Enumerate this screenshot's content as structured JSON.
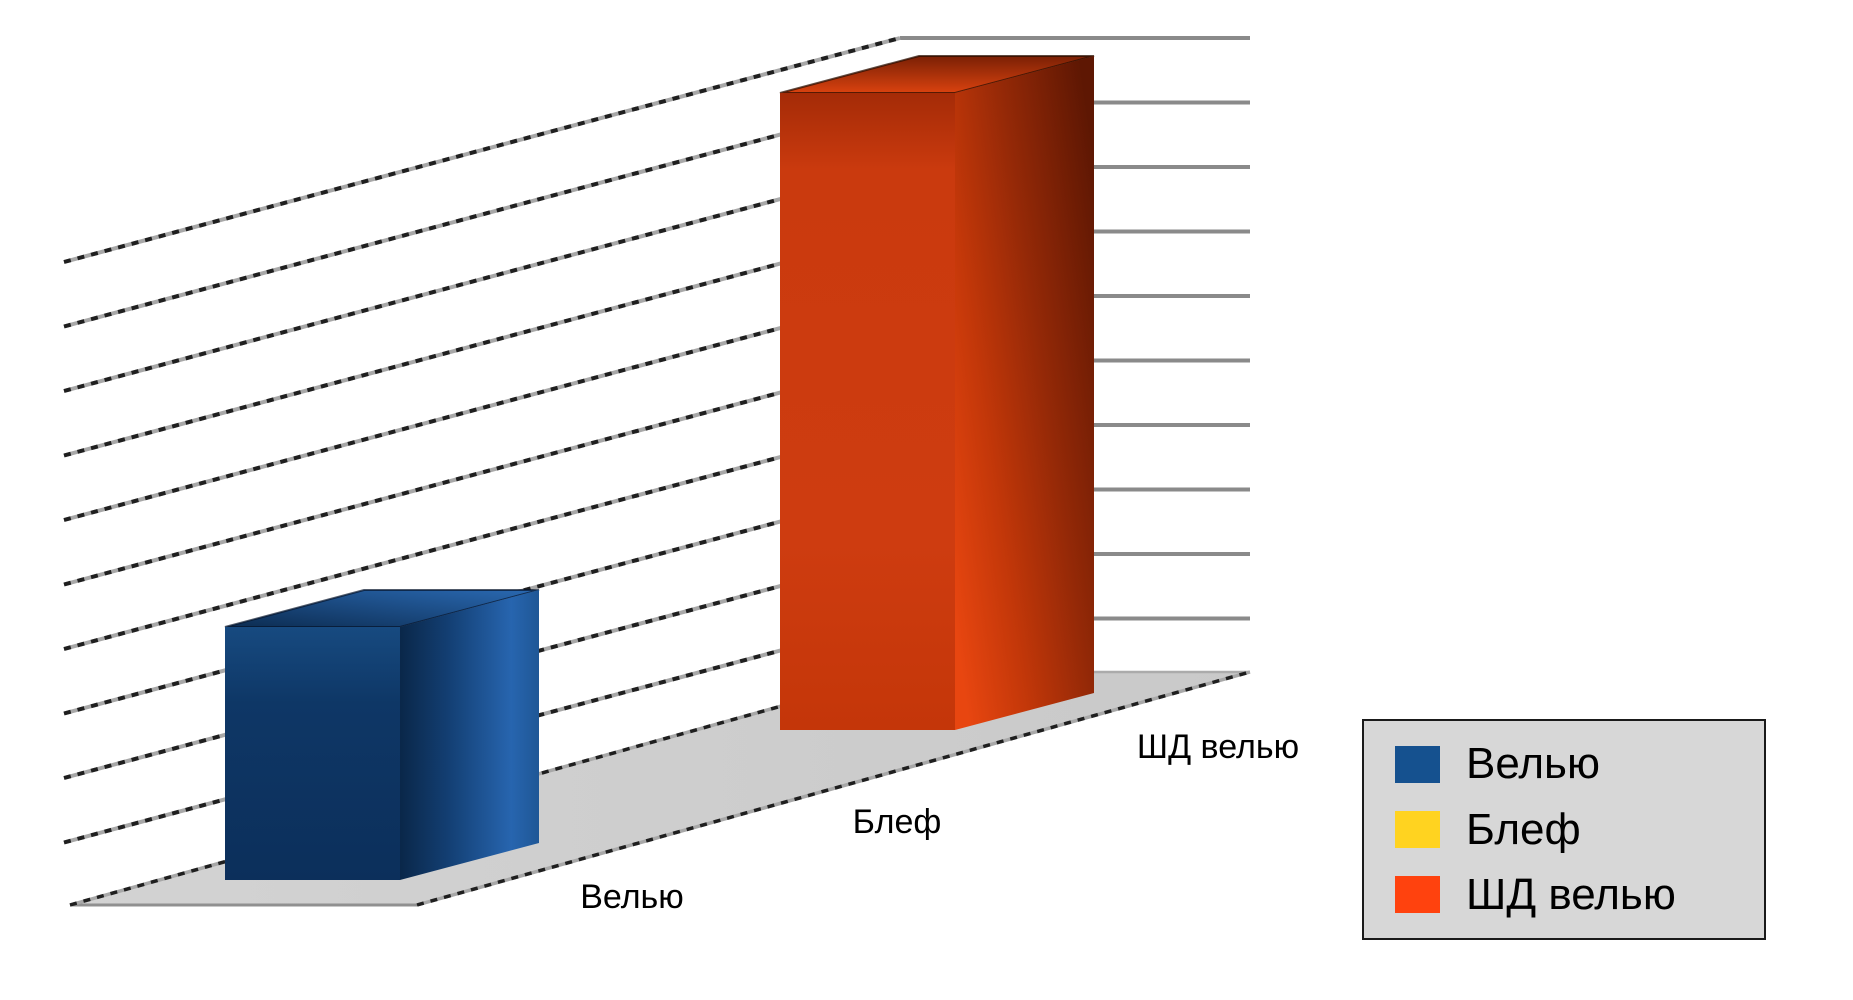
{
  "page": {
    "background": "#FFFFFF"
  },
  "chart_data": {
    "type": "bar",
    "style": "3d-deep",
    "view_note": "3D bar chart, categories recede along an oblique depth axis from lower-left to upper-right",
    "title": "",
    "xlabel": "",
    "ylabel": "",
    "categories": [
      "Велью",
      "Блеф",
      "ШД велью"
    ],
    "values": [
      4,
      0,
      10
    ],
    "values_note": "no numeric axis labels are visible; values estimated in horizontal-gridline units (10 gridlines, top gridline ≈ 10)",
    "ylim": [
      0,
      10
    ],
    "gridlines": {
      "horizontal_count": 10,
      "numeric_labels_visible": false,
      "grid_color": "#8A8A8A",
      "wall_dash_color": "#1F1F1F"
    },
    "floor_color": "#CDCDCD",
    "bar_fill_base": {
      "Велью": "#113A6B",
      "ШД велью": "#CC3A0E"
    },
    "legend": {
      "position": "bottom-right",
      "background": "#D7D7D7",
      "entries": [
        {
          "label": "Велью",
          "color": "#15518F"
        },
        {
          "label": "Блеф",
          "color": "#FFD320"
        },
        {
          "label": "ШД велью",
          "color": "#FF420E"
        }
      ]
    }
  }
}
